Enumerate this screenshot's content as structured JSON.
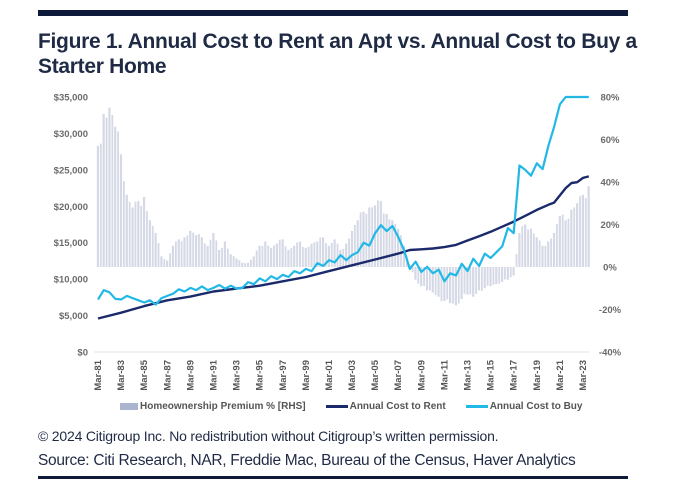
{
  "header": {
    "title": "Figure 1. Annual Cost to Rent an Apt vs. Annual Cost to Buy a Starter Home"
  },
  "footer": {
    "copyright": "© 2024 Citigroup Inc. No redistribution without Citigroup’s written permission.",
    "source": "Source: Citi Research, NAR, Freddie Mac, Bureau of the Census, Haver Analytics"
  },
  "colors": {
    "rule": "#0f1a3a",
    "rent": "#1b2a6b",
    "buy": "#22b8e6",
    "premium": "#d5d9e6"
  },
  "legend": {
    "premium": "Homeownership Premium % [RHS]",
    "rent": "Annual Cost to Rent",
    "buy": "Annual Cost to Buy"
  },
  "chart_data": {
    "type": "line",
    "title": "Figure 1. Annual Cost to Rent an Apt vs. Annual Cost to Buy a Starter Home",
    "xlabel": "",
    "ylabel": "",
    "y_left": {
      "range": [
        0,
        35000
      ],
      "ticks": [
        0,
        5000,
        10000,
        15000,
        20000,
        25000,
        30000,
        35000
      ],
      "tick_labels": [
        "$0",
        "$5,000",
        "$10,000",
        "$15,000",
        "$20,000",
        "$25,000",
        "$30,000",
        "$35,000"
      ]
    },
    "y_right": {
      "range": [
        -40,
        80
      ],
      "ticks": [
        -40,
        -20,
        0,
        20,
        40,
        60,
        80
      ],
      "tick_labels": [
        "-40%",
        "-20%",
        "0%",
        "20%",
        "40%",
        "60%",
        "80%"
      ]
    },
    "x_range": [
      1981.0,
      2023.75
    ],
    "x_ticks": [
      1981,
      1983,
      1985,
      1987,
      1989,
      1991,
      1993,
      1995,
      1997,
      1999,
      2001,
      2003,
      2005,
      2007,
      2009,
      2011,
      2013,
      2015,
      2017,
      2019,
      2021,
      2023
    ],
    "x_tick_labels": [
      "Mar-81",
      "Mar-83",
      "Mar-85",
      "Mar-87",
      "Mar-89",
      "Mar-91",
      "Mar-93",
      "Mar-95",
      "Mar-97",
      "Mar-99",
      "Mar-01",
      "Mar-03",
      "Mar-05",
      "Mar-07",
      "Mar-09",
      "Mar-11",
      "Mar-13",
      "Mar-15",
      "Mar-17",
      "Mar-19",
      "Mar-21",
      "Mar-23"
    ],
    "legend_position": "bottom",
    "grid": false,
    "series": [
      {
        "name": "Annual Cost to Rent",
        "axis": "left",
        "kind": "line",
        "x": [
          1981,
          1983,
          1985,
          1987,
          1989,
          1991,
          1993,
          1995,
          1997,
          1999,
          2001,
          2003,
          2005,
          2007,
          2008,
          2009,
          2010,
          2011,
          2012,
          2013,
          2014,
          2015,
          2016,
          2017,
          2018,
          2019,
          2020,
          2020.5,
          2021,
          2021.5,
          2022,
          2022.5,
          2023,
          2023.5
        ],
        "values": [
          4600,
          5400,
          6300,
          7100,
          7600,
          8300,
          8700,
          9100,
          9700,
          10300,
          11100,
          11900,
          12700,
          13500,
          14000,
          14100,
          14200,
          14400,
          14700,
          15300,
          15900,
          16500,
          17200,
          17900,
          18700,
          19500,
          20200,
          20500,
          21500,
          22500,
          23200,
          23300,
          23900,
          24100
        ]
      },
      {
        "name": "Annual Cost to Buy",
        "axis": "left",
        "kind": "line",
        "x": [
          1981,
          1981.5,
          1982,
          1982.5,
          1983,
          1983.5,
          1984,
          1984.5,
          1985,
          1985.5,
          1986,
          1986.5,
          1987,
          1987.5,
          1988,
          1988.5,
          1989,
          1989.5,
          1990,
          1990.5,
          1991,
          1991.5,
          1992,
          1992.5,
          1993,
          1993.5,
          1994,
          1994.5,
          1995,
          1995.5,
          1996,
          1996.5,
          1997,
          1997.5,
          1998,
          1998.5,
          1999,
          1999.5,
          2000,
          2000.5,
          2001,
          2001.5,
          2002,
          2002.5,
          2003,
          2003.5,
          2004,
          2004.5,
          2005,
          2005.5,
          2006,
          2006.5,
          2007,
          2007.5,
          2008,
          2008.5,
          2009,
          2009.5,
          2010,
          2010.5,
          2011,
          2011.5,
          2012,
          2012.5,
          2013,
          2013.5,
          2014,
          2014.5,
          2015,
          2015.5,
          2016,
          2016.5,
          2017,
          2017.5,
          2018,
          2018.5,
          2019,
          2019.5,
          2020,
          2020.5,
          2021,
          2021.5,
          2022,
          2022.5,
          2023,
          2023.5
        ],
        "values": [
          7200,
          8500,
          8200,
          7300,
          7200,
          7700,
          7400,
          7100,
          6800,
          7100,
          6500,
          7400,
          7700,
          8000,
          8600,
          8300,
          8800,
          8500,
          9000,
          8500,
          8800,
          9200,
          8700,
          9100,
          8700,
          8800,
          9600,
          9300,
          10100,
          9700,
          10400,
          10000,
          10600,
          10300,
          11100,
          10800,
          11400,
          11100,
          12200,
          11800,
          12600,
          12300,
          13300,
          12600,
          13300,
          13700,
          15000,
          14600,
          16300,
          17400,
          16600,
          17300,
          15800,
          14000,
          11400,
          12400,
          11000,
          11700,
          10800,
          11300,
          9700,
          10800,
          10500,
          12100,
          11100,
          12800,
          11800,
          13500,
          12900,
          13700,
          14500,
          17000,
          16300,
          25600,
          25000,
          24200,
          25900,
          25100,
          28300,
          30900,
          34000,
          36700,
          37800,
          37500,
          43500,
          44500
        ]
      },
      {
        "name": "Homeownership Premium % [RHS]",
        "axis": "right",
        "kind": "bar",
        "x": [
          1981,
          1981.5,
          1982,
          1982.5,
          1983,
          1983.5,
          1984,
          1984.5,
          1985,
          1985.5,
          1986,
          1986.5,
          1987,
          1987.5,
          1988,
          1988.5,
          1989,
          1989.5,
          1990,
          1990.5,
          1991,
          1991.5,
          1992,
          1992.5,
          1993,
          1993.5,
          1994,
          1994.5,
          1995,
          1995.5,
          1996,
          1996.5,
          1997,
          1997.5,
          1998,
          1998.5,
          1999,
          1999.5,
          2000,
          2000.5,
          2001,
          2001.5,
          2002,
          2002.5,
          2003,
          2003.5,
          2004,
          2004.5,
          2005,
          2005.5,
          2006,
          2006.5,
          2007,
          2007.5,
          2008,
          2008.5,
          2009,
          2009.5,
          2010,
          2010.5,
          2011,
          2011.5,
          2012,
          2012.5,
          2013,
          2013.5,
          2014,
          2014.5,
          2015,
          2015.5,
          2016,
          2016.5,
          2017,
          2017.5,
          2018,
          2018.5,
          2019,
          2019.5,
          2020,
          2020.5,
          2021,
          2021.5,
          2022,
          2022.5,
          2023,
          2023.5
        ],
        "values": [
          57,
          72,
          75,
          66,
          53,
          34,
          28,
          31,
          33,
          22,
          16,
          5,
          3,
          10,
          13,
          14,
          17,
          15,
          14,
          10,
          16,
          8,
          12,
          6,
          4,
          2,
          2,
          5,
          10,
          12,
          9,
          11,
          13,
          8,
          10,
          12,
          9,
          11,
          12,
          14,
          10,
          13,
          8,
          11,
          17,
          22,
          26,
          28,
          29,
          31,
          25,
          22,
          18,
          10,
          1,
          -6,
          -9,
          -11,
          -12,
          -14,
          -16,
          -17,
          -18,
          -15,
          -13,
          -14,
          -11,
          -10,
          -9,
          -8,
          -7,
          -6,
          -4,
          16,
          20,
          18,
          14,
          10,
          12,
          16,
          24,
          22,
          27,
          30,
          34,
          38
        ]
      }
    ]
  }
}
